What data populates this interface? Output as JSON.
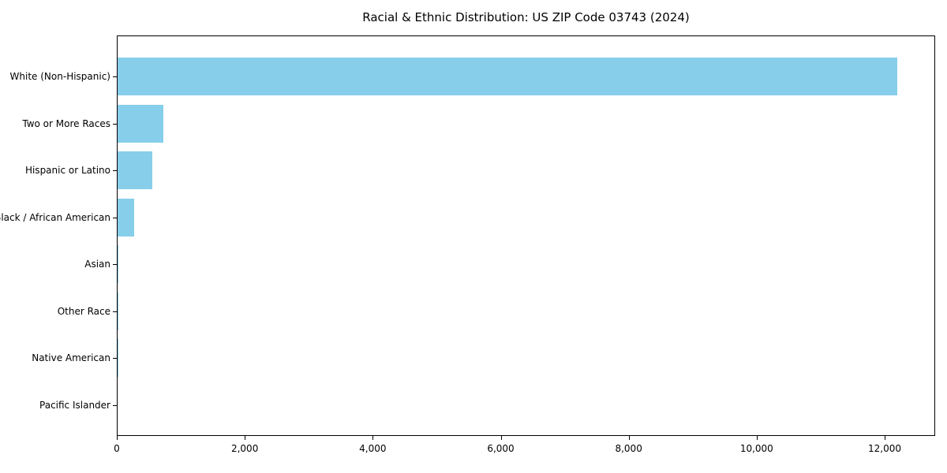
{
  "chart_data": {
    "type": "bar",
    "orientation": "horizontal",
    "title": "Racial & Ethnic Distribution: US ZIP Code 03743 (2024)",
    "categories": [
      "White (Non-Hispanic)",
      "Two or More Races",
      "Hispanic or Latino",
      "Black / African American",
      "Asian",
      "Other Race",
      "Native American",
      "Pacific Islander"
    ],
    "values": [
      12180,
      710,
      545,
      260,
      15,
      10,
      5,
      0
    ],
    "bar_color": "#87CEEB",
    "axis_color": "#000000",
    "text_color": "#000000",
    "background_color": "#FFFFFF",
    "xlabel": "",
    "ylabel": "",
    "xlim": [
      0,
      12790
    ],
    "x_ticks": [
      0,
      2000,
      4000,
      6000,
      8000,
      10000,
      12000
    ],
    "x_tick_labels": [
      "0",
      "2,000",
      "4,000",
      "6,000",
      "8,000",
      "10,000",
      "12,000"
    ],
    "grid": false,
    "legend": "none",
    "sort_order": "descending"
  }
}
